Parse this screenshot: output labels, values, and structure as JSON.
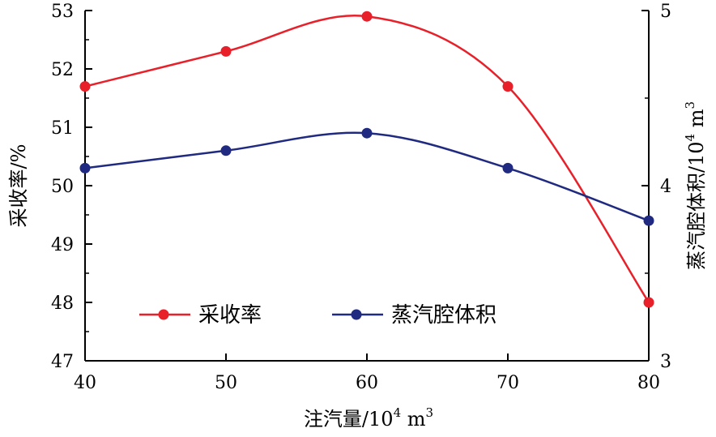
{
  "chart_data": {
    "type": "line",
    "x": [
      40,
      50,
      60,
      70,
      80
    ],
    "xlim": [
      40,
      80
    ],
    "xticks": [
      "40",
      "50",
      "60",
      "70",
      "80"
    ],
    "xlabel": {
      "main": "注汽量/10",
      "sup": "4",
      "unit": " m",
      "sup2": "3"
    },
    "y_left": {
      "label": "采收率/%",
      "ylim": [
        47,
        53
      ],
      "ticks": [
        "47",
        "48",
        "49",
        "50",
        "51",
        "52",
        "53"
      ]
    },
    "y_right": {
      "label": {
        "main": "蒸汽腔体积/10",
        "sup": "4",
        "unit": " m",
        "sup2": "3"
      },
      "ylim": [
        3,
        5
      ],
      "ticks": [
        "3",
        "4",
        "5"
      ]
    },
    "series": [
      {
        "name": "采收率",
        "axis": "left",
        "color": "#e8202a",
        "values": [
          51.7,
          52.3,
          52.9,
          51.7,
          48.0
        ]
      },
      {
        "name": "蒸汽腔体积",
        "axis": "right",
        "color": "#1f2a80",
        "values": [
          4.1,
          4.2,
          4.3,
          4.1,
          3.8
        ]
      }
    ],
    "legend": "bottom-center",
    "grid": false
  }
}
